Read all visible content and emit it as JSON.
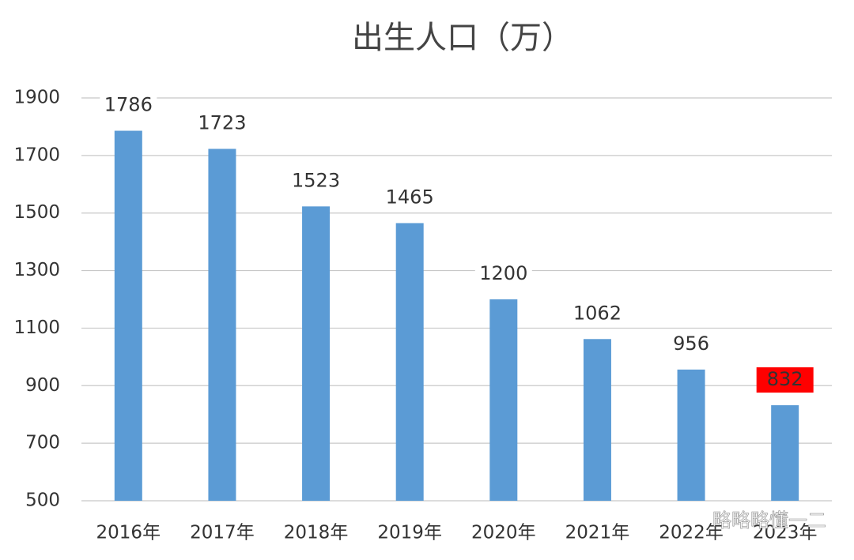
{
  "chart_data": {
    "type": "bar",
    "title": "出生人口（万）",
    "categories": [
      "2016年",
      "2017年",
      "2018年",
      "2019年",
      "2020年",
      "2021年",
      "2022年",
      "2023年"
    ],
    "values": [
      1786,
      1723,
      1523,
      1465,
      1200,
      1062,
      956,
      832
    ],
    "color": "#5b9bd5",
    "label_backgrounds": [
      null,
      null,
      null,
      null,
      null,
      null,
      null,
      "#ff0000"
    ],
    "ylim": [
      500,
      1900
    ],
    "yticks": [
      500,
      700,
      900,
      1100,
      1300,
      1500,
      1700,
      1900
    ],
    "grid": true,
    "watermark": "略略略懂一二"
  }
}
